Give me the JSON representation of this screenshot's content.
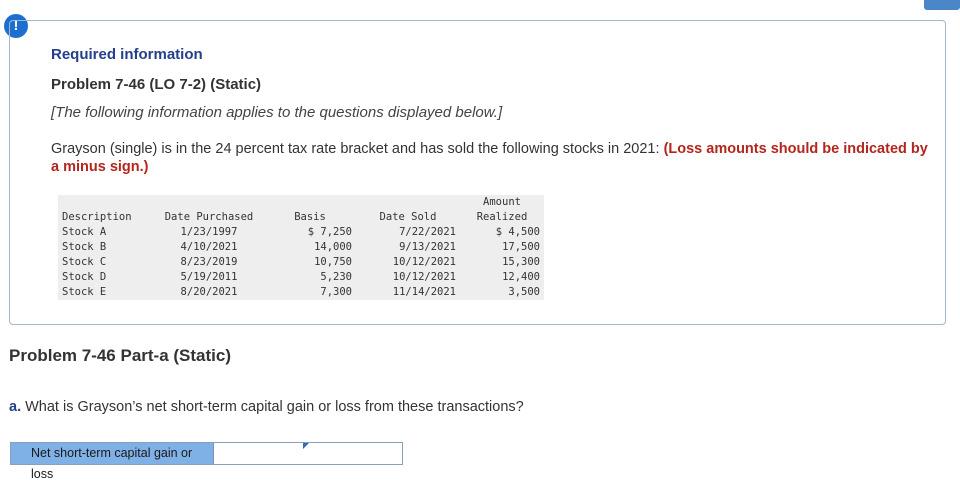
{
  "header": {
    "alert_glyph": "!",
    "required_label": "Required information",
    "problem_title": "Problem 7-46 (LO 7-2) (Static)",
    "note": "[The following information applies to the questions displayed below.]",
    "intro_text": "Grayson (single) is in the 24 percent tax rate bracket and has sold the following stocks in 2021: ",
    "intro_warning": "(Loss amounts should be indicated by a minus sign.)"
  },
  "table": {
    "headers": {
      "description": "Description",
      "date_purchased": "Date Purchased",
      "basis": "Basis",
      "date_sold": "Date Sold",
      "amount_line1": "Amount",
      "amount_line2": "Realized"
    },
    "rows": [
      {
        "description": "Stock A",
        "date_purchased": "1/23/1997",
        "basis": "$ 7,250",
        "date_sold": "7/22/2021",
        "amount_realized": "$ 4,500"
      },
      {
        "description": "Stock B",
        "date_purchased": "4/10/2021",
        "basis": "14,000",
        "date_sold": "9/13/2021",
        "amount_realized": "17,500"
      },
      {
        "description": "Stock C",
        "date_purchased": "8/23/2019",
        "basis": "10,750",
        "date_sold": "10/12/2021",
        "amount_realized": "15,300"
      },
      {
        "description": "Stock D",
        "date_purchased": "5/19/2011",
        "basis": "5,230",
        "date_sold": "10/12/2021",
        "amount_realized": "12,400"
      },
      {
        "description": "Stock E",
        "date_purchased": "8/20/2021",
        "basis": "7,300",
        "date_sold": "11/14/2021",
        "amount_realized": "3,500"
      }
    ]
  },
  "part": {
    "title": "Problem 7-46 Part-a (Static)",
    "question_letter": "a.",
    "question_text": " What is Grayson’s net short-term capital gain or loss from these transactions?",
    "answer_label": "Net short-term capital gain or loss",
    "answer_value": ""
  },
  "colors": {
    "accent": "#1c6fd1",
    "title_blue": "#24408a",
    "warning_red": "#b3261e",
    "answer_label_bg": "#7fb0e6"
  }
}
